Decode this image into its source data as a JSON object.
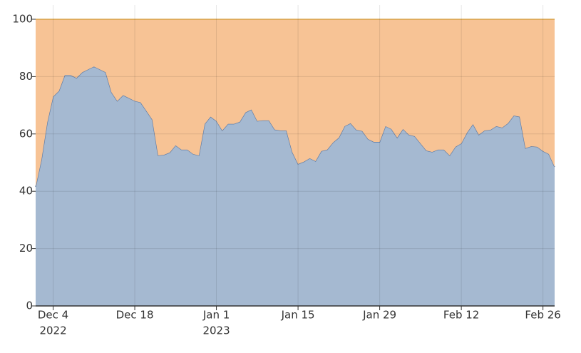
{
  "chart_data": {
    "type": "area",
    "stacked": true,
    "x": [
      "2022-12-01",
      "2022-12-02",
      "2022-12-03",
      "2022-12-04",
      "2022-12-05",
      "2022-12-06",
      "2022-12-07",
      "2022-12-08",
      "2022-12-09",
      "2022-12-10",
      "2022-12-11",
      "2022-12-12",
      "2022-12-13",
      "2022-12-14",
      "2022-12-15",
      "2022-12-16",
      "2022-12-17",
      "2022-12-18",
      "2022-12-19",
      "2022-12-20",
      "2022-12-21",
      "2022-12-22",
      "2022-12-23",
      "2022-12-24",
      "2022-12-25",
      "2022-12-26",
      "2022-12-27",
      "2022-12-28",
      "2022-12-29",
      "2022-12-30",
      "2022-12-31",
      "2023-01-01",
      "2023-01-02",
      "2023-01-03",
      "2023-01-04",
      "2023-01-05",
      "2023-01-06",
      "2023-01-07",
      "2023-01-08",
      "2023-01-09",
      "2023-01-10",
      "2023-01-11",
      "2023-01-12",
      "2023-01-13",
      "2023-01-14",
      "2023-01-15",
      "2023-01-16",
      "2023-01-17",
      "2023-01-18",
      "2023-01-19",
      "2023-01-20",
      "2023-01-21",
      "2023-01-22",
      "2023-01-23",
      "2023-01-24",
      "2023-01-25",
      "2023-01-26",
      "2023-01-27",
      "2023-01-28",
      "2023-01-29",
      "2023-01-30",
      "2023-01-31",
      "2023-02-01",
      "2023-02-02",
      "2023-02-03",
      "2023-02-04",
      "2023-02-05",
      "2023-02-06",
      "2023-02-07",
      "2023-02-08",
      "2023-02-09",
      "2023-02-10",
      "2023-02-11",
      "2023-02-12",
      "2023-02-13",
      "2023-02-14",
      "2023-02-15",
      "2023-02-16",
      "2023-02-17",
      "2023-02-18",
      "2023-02-19",
      "2023-02-20",
      "2023-02-21",
      "2023-02-22",
      "2023-02-23",
      "2023-02-24",
      "2023-02-25",
      "2023-02-26",
      "2023-02-27",
      "2023-02-28"
    ],
    "series": [
      {
        "color": "#a5b9d1",
        "line_color": "#5a79a5",
        "values": [
          41.5,
          51,
          64,
          73,
          75,
          80.5,
          80.5,
          79.5,
          81.5,
          82.5,
          83.5,
          82.5,
          81.5,
          74.5,
          71.5,
          73.5,
          72.5,
          71.5,
          71,
          68,
          65,
          52.5,
          52.7,
          53.5,
          56,
          54.5,
          54.5,
          53,
          52.5,
          63.5,
          66,
          64.5,
          61.2,
          63.5,
          63.5,
          64.2,
          67.5,
          68.5,
          64.5,
          64.7,
          64.7,
          61.5,
          61.2,
          61.2,
          53.7,
          49.5,
          50.3,
          51.5,
          50.5,
          54,
          54.5,
          57,
          58.7,
          62.7,
          63.7,
          61.4,
          61,
          58.2,
          57.2,
          57.2,
          62.7,
          61.7,
          58.7,
          61.7,
          59.7,
          59.2,
          56.7,
          54.2,
          53.7,
          54.5,
          54.5,
          52.5,
          55.5,
          56.7,
          60.5,
          63.4,
          59.7,
          61.2,
          61.4,
          62.7,
          62.2,
          63.7,
          66.4,
          66,
          55,
          55.7,
          55.5,
          54,
          53,
          48.5
        ]
      },
      {
        "color": "#f7c395",
        "line_color": "#e5a63a",
        "values": [
          58.5,
          49,
          36,
          27,
          25,
          19.5,
          19.5,
          20.5,
          18.5,
          17.5,
          16.5,
          17.5,
          18.5,
          25.5,
          28.5,
          26.5,
          27.5,
          28.5,
          29,
          32,
          35,
          47.5,
          47.3,
          46.5,
          44,
          45.5,
          45.5,
          47,
          47.5,
          36.5,
          34,
          35.5,
          38.8,
          36.5,
          36.5,
          35.8,
          32.5,
          31.5,
          35.5,
          35.3,
          35.3,
          38.5,
          38.8,
          38.8,
          46.3,
          50.5,
          49.7,
          48.5,
          49.5,
          46,
          45.5,
          43,
          41.3,
          37.3,
          36.3,
          38.6,
          39,
          41.8,
          42.8,
          42.8,
          37.3,
          38.3,
          41.3,
          38.3,
          40.3,
          40.8,
          43.3,
          45.8,
          46.3,
          45.5,
          45.5,
          47.5,
          44.5,
          43.3,
          39.5,
          36.6,
          40.3,
          38.8,
          38.6,
          37.3,
          37.8,
          36.3,
          33.6,
          34,
          45,
          44.3,
          44.5,
          46,
          47,
          51.5
        ]
      }
    ],
    "xlim": [
      "2022-12-01",
      "2023-02-28"
    ],
    "xticks": [
      {
        "value": "2022-12-04",
        "label": [
          "Dec 4",
          "2022"
        ]
      },
      {
        "value": "2022-12-18",
        "label": [
          "Dec 18"
        ]
      },
      {
        "value": "2023-01-01",
        "label": [
          "Jan 1",
          "2023"
        ]
      },
      {
        "value": "2023-01-15",
        "label": [
          "Jan 15"
        ]
      },
      {
        "value": "2023-01-29",
        "label": [
          "Jan 29"
        ]
      },
      {
        "value": "2023-02-12",
        "label": [
          "Feb 12"
        ]
      },
      {
        "value": "2023-02-26",
        "label": [
          "Feb 26"
        ]
      }
    ],
    "ylim": [
      0,
      100
    ],
    "yticks": [
      0,
      20,
      40,
      60,
      80,
      100
    ],
    "grid": true
  }
}
